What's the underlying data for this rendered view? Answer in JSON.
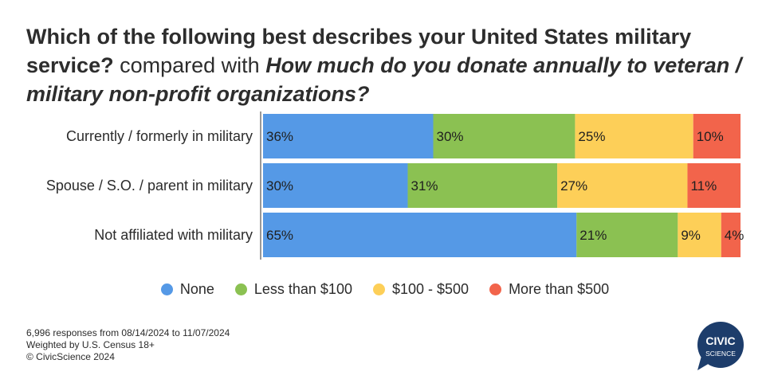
{
  "title": {
    "part1": "Which of the following best describes your United States military service?",
    "part2": " compared with ",
    "part3": "How much do you donate annually to veteran / military non-profit organizations?"
  },
  "chart_data": {
    "type": "bar",
    "orientation": "horizontal",
    "stacked": true,
    "categories": [
      "Currently / formerly in military",
      "Spouse / S.O. / parent in military",
      "Not affiliated with military"
    ],
    "series": [
      {
        "name": "None",
        "values": [
          36,
          30,
          65
        ],
        "color": "#5599e6"
      },
      {
        "name": "Less than $100",
        "values": [
          30,
          31,
          21
        ],
        "color": "#8bc152"
      },
      {
        "name": "$100 - $500",
        "values": [
          25,
          27,
          9
        ],
        "color": "#fdcf58"
      },
      {
        "name": "More than $500",
        "values": [
          10,
          11,
          4
        ],
        "color": "#f2644b"
      }
    ],
    "value_suffix": "%",
    "legend": "bottom"
  },
  "footer": {
    "line1": "6,996 responses from 08/14/2024 to 11/07/2024",
    "line2": "Weighted by U.S. Census 18+",
    "line3": "© CivicScience 2024"
  },
  "logo": {
    "line1": "CIVIC",
    "line2": "SCIENCE",
    "color": "#1d3d6b"
  }
}
